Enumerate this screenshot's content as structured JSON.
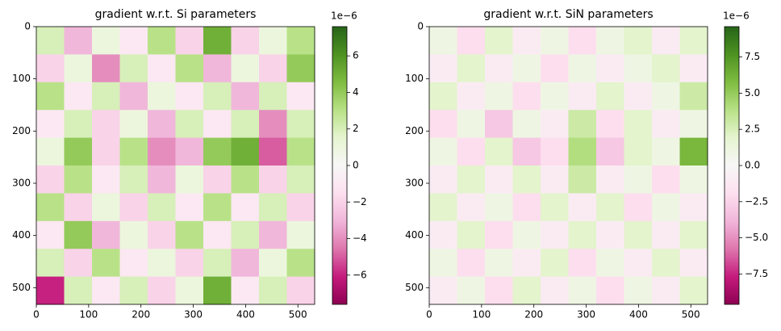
{
  "chart_data": [
    {
      "type": "heatmap",
      "title": "gradient w.r.t. Si parameters",
      "colormap": "PiYG",
      "xlim": [
        0,
        532
      ],
      "ylim": [
        532,
        0
      ],
      "xticks": [
        0,
        100,
        200,
        300,
        400,
        500
      ],
      "yticks": [
        0,
        100,
        200,
        300,
        400,
        500
      ],
      "clim": [
        -7.6,
        7.6
      ],
      "color_offset_label": "1e−6",
      "cticks": [
        {
          "value": -6,
          "label": "−6"
        },
        {
          "value": -4,
          "label": "−4"
        },
        {
          "value": -2,
          "label": "−2"
        },
        0,
        2,
        4,
        6
      ],
      "z": [
        [
          2,
          -3,
          1,
          -1,
          3,
          -2,
          5,
          -2,
          1,
          3
        ],
        [
          -2,
          1,
          -4,
          2,
          -1,
          3,
          -3,
          1,
          -2,
          4
        ],
        [
          3,
          -1,
          2,
          -3,
          1,
          -1,
          2,
          -3,
          2,
          -1
        ],
        [
          -1,
          2,
          -2,
          1,
          -3,
          2,
          -1,
          2,
          -4,
          2
        ],
        [
          1,
          4,
          -2,
          3,
          -4,
          -3,
          4,
          5,
          -5,
          3
        ],
        [
          -2,
          3,
          -1,
          2,
          -3,
          1,
          -2,
          3,
          -2,
          2
        ],
        [
          3,
          -2,
          1,
          -2,
          2,
          -1,
          3,
          -1,
          2,
          -2
        ],
        [
          -1,
          4,
          -3,
          1,
          -2,
          3,
          -1,
          2,
          -3,
          1
        ],
        [
          2,
          -2,
          3,
          -1,
          1,
          -2,
          2,
          -3,
          1,
          3
        ],
        [
          -6,
          2,
          -1,
          2,
          -2,
          1,
          5,
          -1,
          2,
          -2
        ]
      ]
    },
    {
      "type": "heatmap",
      "title": "gradient w.r.t. SiN parameters",
      "colormap": "PiYG",
      "xlim": [
        0,
        532
      ],
      "ylim": [
        532,
        0
      ],
      "xticks": [
        0,
        100,
        200,
        300,
        400,
        500
      ],
      "yticks": [
        0,
        100,
        200,
        300,
        400,
        500
      ],
      "clim": [
        -9.6,
        9.6
      ],
      "color_offset_label": "1e−6",
      "cticks": [
        {
          "value": -7.5,
          "label": "−7.5"
        },
        {
          "value": -5,
          "label": "−5.0"
        },
        {
          "value": -2.5,
          "label": "−2.5"
        },
        {
          "value": 0,
          "label": "0.0"
        },
        {
          "value": 2.5,
          "label": "2.5"
        },
        {
          "value": 5,
          "label": "5.0"
        },
        {
          "value": 7.5,
          "label": "7.5"
        }
      ],
      "z": [
        [
          1,
          -2,
          2,
          -1,
          1,
          -2,
          1,
          2,
          -1,
          2
        ],
        [
          -1,
          2,
          -1,
          1,
          -2,
          1,
          -1,
          1,
          2,
          -1
        ],
        [
          2,
          -1,
          1,
          -2,
          1,
          -1,
          2,
          -1,
          1,
          3
        ],
        [
          -2,
          1,
          -3,
          1,
          -1,
          3,
          -2,
          2,
          -1,
          1
        ],
        [
          1,
          -2,
          2,
          -3,
          -2,
          4,
          -3,
          2,
          1,
          6
        ],
        [
          -1,
          2,
          -1,
          2,
          -1,
          3,
          -1,
          1,
          -2,
          1
        ],
        [
          2,
          -1,
          1,
          -2,
          2,
          -1,
          2,
          -2,
          1,
          -1
        ],
        [
          -1,
          2,
          -2,
          1,
          -1,
          2,
          -1,
          2,
          -1,
          2
        ],
        [
          1,
          -2,
          1,
          -1,
          2,
          -2,
          1,
          -1,
          2,
          -1
        ],
        [
          -1,
          1,
          -2,
          2,
          -1,
          1,
          -2,
          1,
          -1,
          2
        ]
      ]
    }
  ]
}
